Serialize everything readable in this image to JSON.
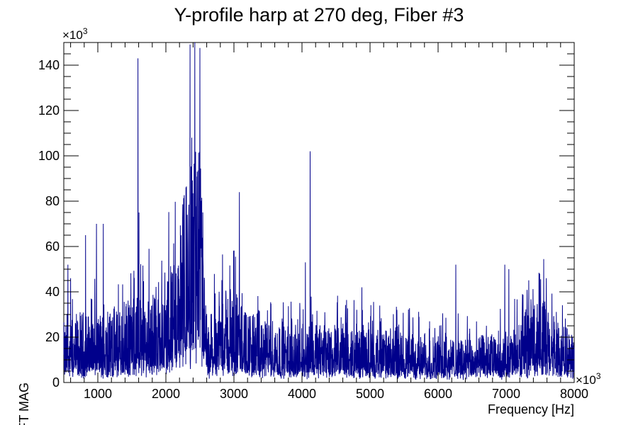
{
  "chart_data": {
    "type": "line",
    "title": "Y-profile harp at 270 deg, Fiber #3",
    "xlabel": "Frequency [Hz]",
    "ylabel": "FFT MAG",
    "x_multiplier_label": "×10",
    "x_multiplier_exp": "3",
    "y_multiplier_label": "×10",
    "y_multiplier_exp": "3",
    "xlim": [
      500,
      8000
    ],
    "ylim": [
      0,
      150
    ],
    "x_ticks": [
      1000,
      2000,
      3000,
      4000,
      5000,
      6000,
      7000,
      8000
    ],
    "x_tick_labels": [
      "1000",
      "2000",
      "3000",
      "4000",
      "5000",
      "6000",
      "7000",
      "8000"
    ],
    "y_ticks": [
      0,
      20,
      40,
      60,
      80,
      100,
      120,
      140
    ],
    "y_tick_labels": [
      "0",
      "20",
      "40",
      "60",
      "80",
      "100",
      "120",
      "140"
    ],
    "grid": false,
    "legend": false,
    "line_color": "#00008b",
    "series": [
      {
        "baseline_envelope": [
          [
            500,
            14
          ],
          [
            700,
            16
          ],
          [
            900,
            17
          ],
          [
            1100,
            17
          ],
          [
            1300,
            18
          ],
          [
            1500,
            20
          ],
          [
            1800,
            22
          ],
          [
            2000,
            26
          ],
          [
            2200,
            36
          ],
          [
            2300,
            48
          ],
          [
            2400,
            58
          ],
          [
            2450,
            62
          ],
          [
            2500,
            55
          ],
          [
            2550,
            40
          ],
          [
            2600,
            16
          ],
          [
            2650,
            10
          ],
          [
            2700,
            18
          ],
          [
            2800,
            24
          ],
          [
            3000,
            22
          ],
          [
            3200,
            18
          ],
          [
            3500,
            15
          ],
          [
            4000,
            14
          ],
          [
            4500,
            14
          ],
          [
            5000,
            13
          ],
          [
            5500,
            12
          ],
          [
            6000,
            11
          ],
          [
            6500,
            11
          ],
          [
            7000,
            12
          ],
          [
            7200,
            14
          ],
          [
            7400,
            20
          ],
          [
            7500,
            22
          ],
          [
            7600,
            18
          ],
          [
            7800,
            14
          ],
          [
            8000,
            12
          ]
        ],
        "peaks": [
          [
            560,
            52
          ],
          [
            600,
            46
          ],
          [
            820,
            65
          ],
          [
            980,
            70
          ],
          [
            1080,
            70
          ],
          [
            1590,
            143
          ],
          [
            1605,
            75
          ],
          [
            2380,
            108
          ],
          [
            2460,
            93
          ],
          [
            2520,
            80
          ],
          [
            3080,
            84
          ],
          [
            4050,
            53
          ],
          [
            4120,
            102
          ],
          [
            4880,
            42
          ],
          [
            6260,
            52
          ],
          [
            6980,
            52
          ],
          [
            7040,
            50
          ],
          [
            7590,
            46
          ]
        ]
      }
    ]
  }
}
